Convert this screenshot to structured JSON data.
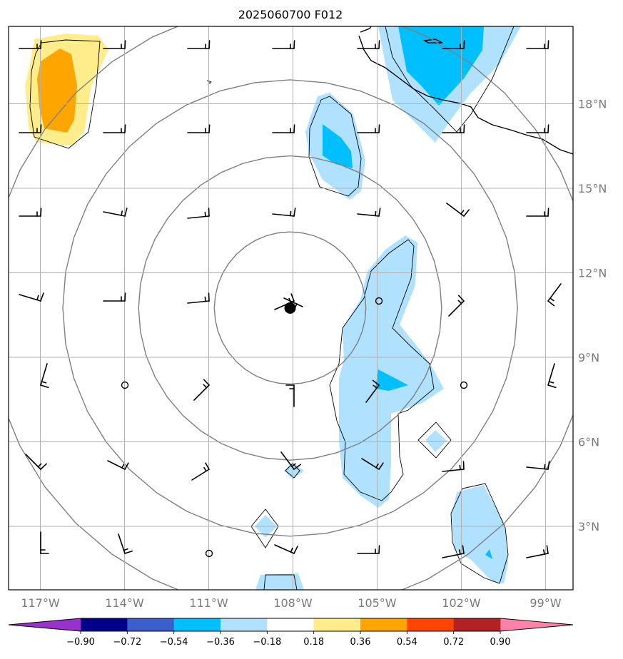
{
  "title": "2025060700 F012",
  "axes": {
    "lon_labels": [
      "117°W",
      "114°W",
      "111°W",
      "108°W",
      "105°W",
      "102°W",
      "99°W"
    ],
    "lat_labels": [
      "18°N",
      "15°N",
      "12°N",
      "9°N",
      "6°N",
      "3°N"
    ],
    "lon_values": [
      -117,
      -114,
      -111,
      -108,
      -105,
      -102,
      -99
    ],
    "lat_values": [
      18,
      15,
      12,
      9,
      6,
      3
    ],
    "lon_range": [
      -118.1,
      -98.1
    ],
    "lat_range": [
      0.8,
      20.5
    ],
    "grid": true
  },
  "storm_center": {
    "lon": -108.1,
    "lat": 10.75
  },
  "range_rings_deg": [
    2.7,
    5.4,
    8.1,
    10.8
  ],
  "colorbar": {
    "tick_labels": [
      "−0.90",
      "−0.72",
      "−0.54",
      "−0.36",
      "−0.18",
      "0.18",
      "0.36",
      "0.54",
      "0.72",
      "0.90"
    ],
    "colors": [
      "#9932cc",
      "#00008b",
      "#3a5fcd",
      "#00bfff",
      "#b0e2ff",
      "#ffffff",
      "#ffec8b",
      "#ffa500",
      "#ff4500",
      "#b22222",
      "#ff82ab"
    ],
    "extend": "both"
  },
  "field_colors": {
    "light_blue": "#b0e2ff",
    "blue": "#00bfff",
    "yellow": "#ffec8b",
    "orange": "#ffa500"
  }
}
